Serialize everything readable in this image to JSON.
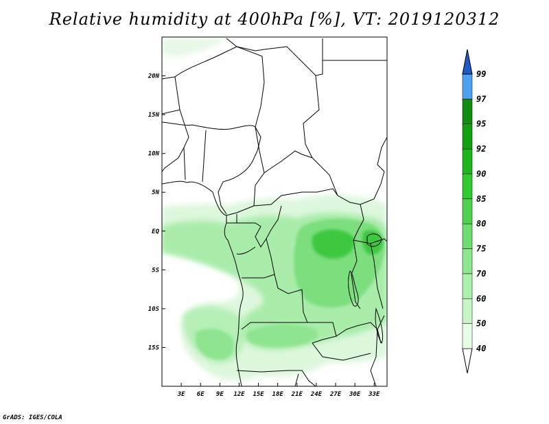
{
  "title": "Relative humidity at 400hPa [%], VT: 2019120312",
  "credit": "GrADS: IGES/COLA",
  "map": {
    "lon_range": [
      0,
      35
    ],
    "lat_range": [
      -20,
      25
    ],
    "lon_ticks": [
      {
        "v": 3,
        "label": "3E"
      },
      {
        "v": 6,
        "label": "6E"
      },
      {
        "v": 9,
        "label": "9E"
      },
      {
        "v": 12,
        "label": "12E"
      },
      {
        "v": 15,
        "label": "15E"
      },
      {
        "v": 18,
        "label": "18E"
      },
      {
        "v": 21,
        "label": "21E"
      },
      {
        "v": 24,
        "label": "24E"
      },
      {
        "v": 27,
        "label": "27E"
      },
      {
        "v": 30,
        "label": "30E"
      },
      {
        "v": 33,
        "label": "33E"
      }
    ],
    "lat_ticks": [
      {
        "v": 20,
        "label": "20N"
      },
      {
        "v": 15,
        "label": "15N"
      },
      {
        "v": 10,
        "label": "10N"
      },
      {
        "v": 5,
        "label": "5N"
      },
      {
        "v": 0,
        "label": "EQ"
      },
      {
        "v": -5,
        "label": "5S"
      },
      {
        "v": -10,
        "label": "10S"
      },
      {
        "v": -15,
        "label": "15S"
      }
    ]
  },
  "legend": {
    "levels": [
      "40",
      "50",
      "60",
      "70",
      "75",
      "80",
      "85",
      "90",
      "92",
      "95",
      "97",
      "99"
    ],
    "colors": [
      "#e6ffe6",
      "#c8f5c8",
      "#aaefaa",
      "#8ee68e",
      "#6edc6e",
      "#50d250",
      "#32c832",
      "#1eb41e",
      "#12a012",
      "#148c14",
      "#50a0f0",
      "#2878dc",
      "#1e5ac8"
    ]
  },
  "colors": {
    "light_green": "#ddf7dd",
    "mid_green": "#a9ecaa",
    "green": "#7cde7d",
    "dark_green": "#3ec83f"
  }
}
